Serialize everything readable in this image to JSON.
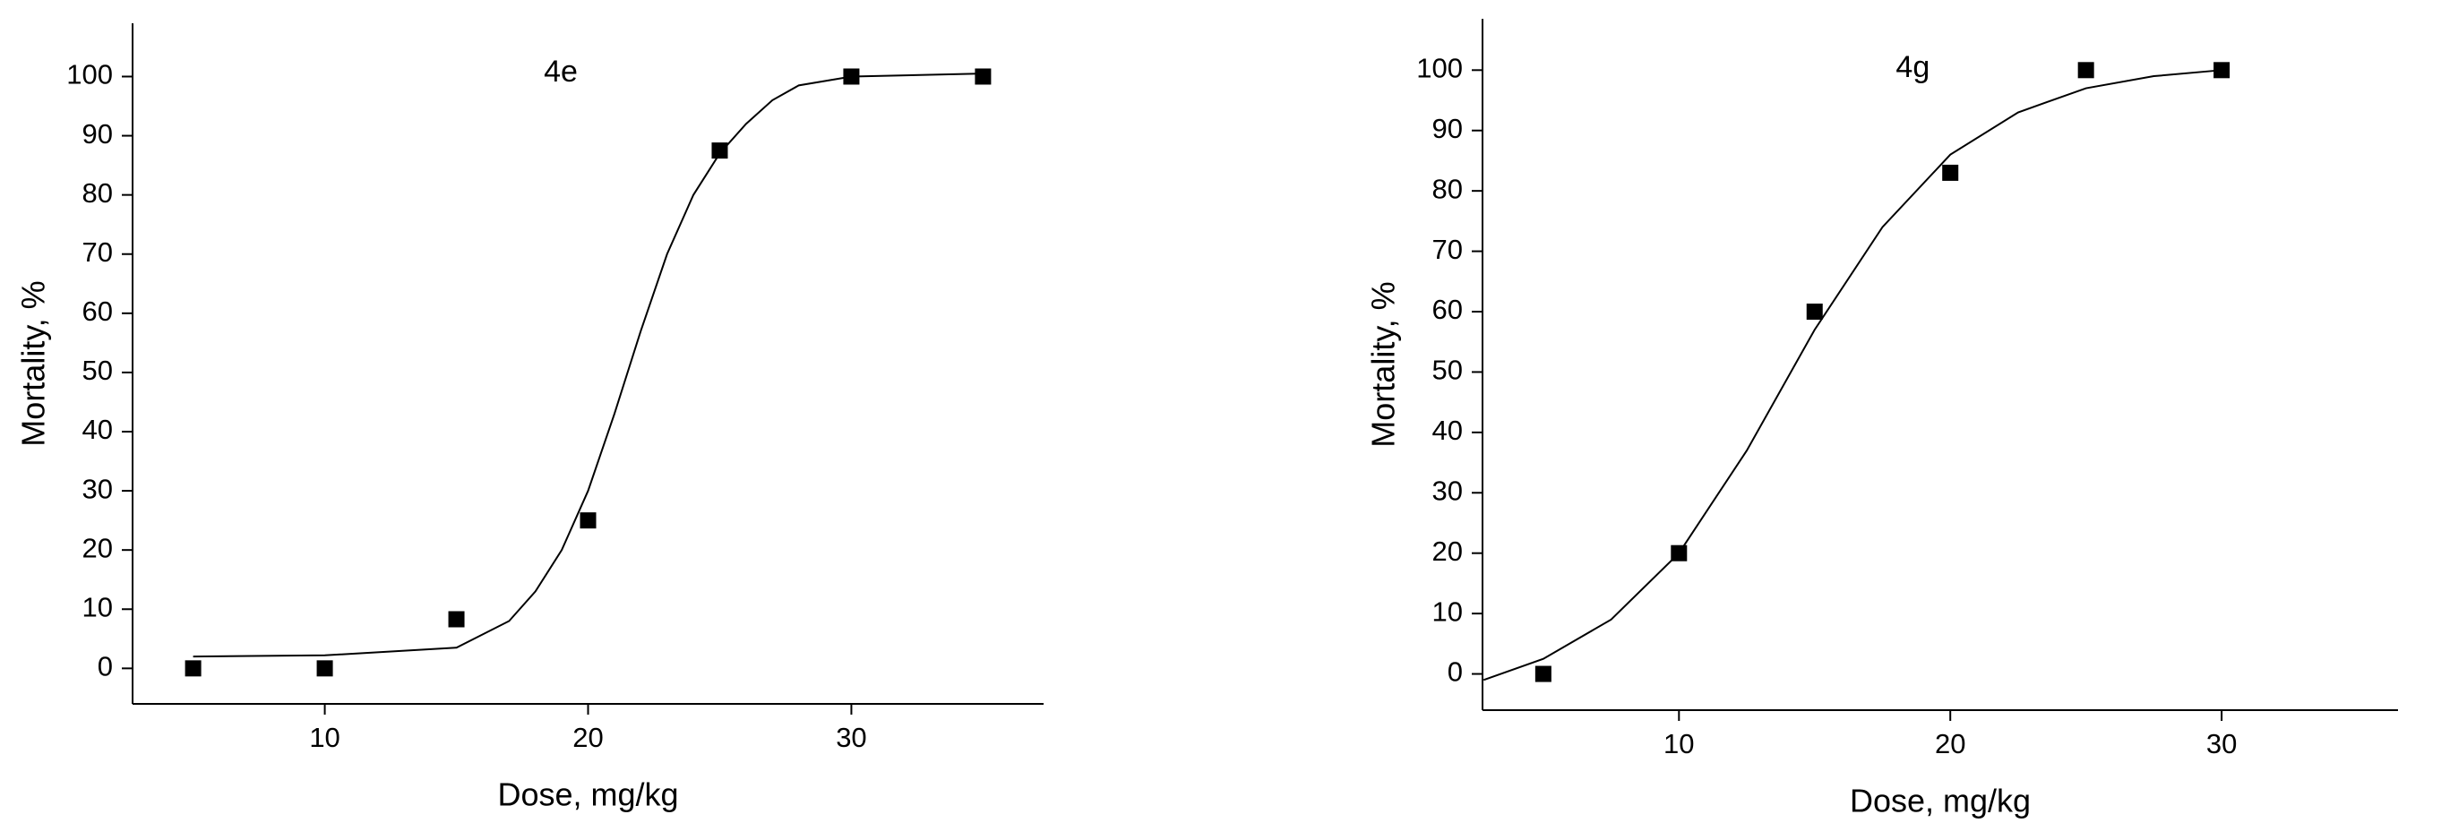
{
  "chart_data": [
    {
      "type": "scatter",
      "title": "4e",
      "x_label": "Dose, mg/kg",
      "y_label": "Mortality, %",
      "xlim": [
        2.7,
        37.3
      ],
      "ylim": [
        -6,
        109
      ],
      "xticks": [
        10,
        20,
        30
      ],
      "yticks": [
        0,
        10,
        20,
        30,
        40,
        50,
        60,
        70,
        80,
        90,
        100
      ],
      "series": [
        {
          "style": "markers",
          "color": "#000000",
          "x": [
            5,
            10,
            15,
            20,
            25,
            30,
            35
          ],
          "values": [
            0,
            0,
            8.3,
            25,
            87.5,
            100,
            100
          ]
        },
        {
          "style": "line",
          "color": "#000000",
          "x": [
            5,
            10,
            15,
            17,
            18,
            19,
            20,
            21,
            22,
            23,
            24,
            25,
            26,
            27,
            28,
            30,
            35
          ],
          "values": [
            2,
            2.2,
            3.5,
            8,
            13,
            20,
            30,
            43,
            57,
            70,
            80,
            87,
            92,
            96,
            98.5,
            100,
            100.5
          ]
        }
      ]
    },
    {
      "type": "scatter",
      "title": "4g",
      "x_label": "Dose, mg/kg",
      "y_label": "Mortality, %",
      "xlim": [
        2.76,
        36.5
      ],
      "ylim": [
        -6,
        108.5
      ],
      "xticks": [
        10,
        20,
        30
      ],
      "yticks": [
        0,
        10,
        20,
        30,
        40,
        50,
        60,
        70,
        80,
        90,
        100
      ],
      "series": [
        {
          "style": "markers",
          "color": "#000000",
          "x": [
            5,
            10,
            15,
            20,
            25,
            30
          ],
          "values": [
            0,
            20,
            60,
            83,
            100,
            100
          ]
        },
        {
          "style": "line",
          "color": "#000000",
          "x": [
            2.8,
            5,
            7.5,
            10,
            12.5,
            15,
            17.5,
            20,
            22.5,
            25,
            27.5,
            30
          ],
          "values": [
            -1,
            2.5,
            9,
            20,
            37,
            57,
            74,
            86,
            93,
            97,
            99,
            100
          ]
        }
      ]
    }
  ]
}
